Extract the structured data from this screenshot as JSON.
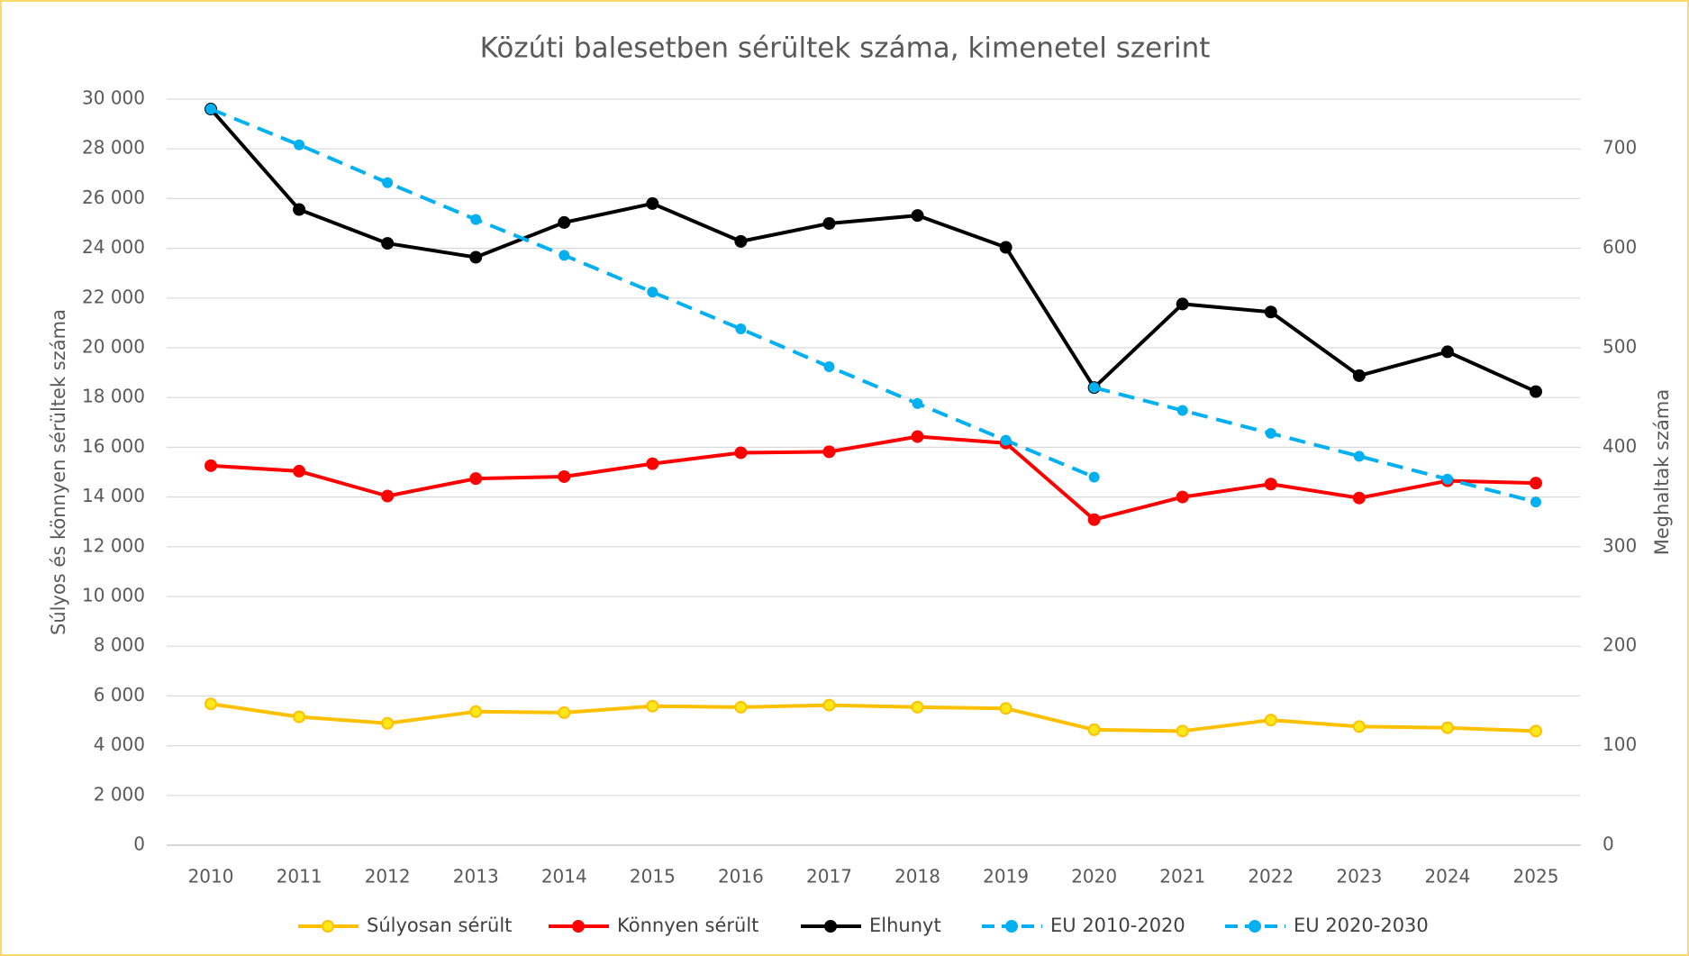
{
  "chart_data": {
    "type": "line",
    "title": "Közúti balesetben sérültek száma, kimenetel szerint",
    "y_label": "Súlyos és könnyen sérültek száma",
    "y2_label": "Meghaltak száma",
    "categories": [
      "2010",
      "2011",
      "2012",
      "2013",
      "2014",
      "2015",
      "2016",
      "2017",
      "2018",
      "2019",
      "2020",
      "2021",
      "2022",
      "2023",
      "2024",
      "2025"
    ],
    "ylim": [
      0,
      30000
    ],
    "yticks": [
      0,
      {
        "value": 2000,
        "label": "2 000"
      },
      {
        "value": 4000,
        "label": "4 000"
      },
      {
        "value": 6000,
        "label": "6 000"
      },
      {
        "value": 8000,
        "label": "8 000"
      },
      {
        "value": 10000,
        "label": "10 000"
      },
      {
        "value": 12000,
        "label": "12 000"
      },
      {
        "value": 14000,
        "label": "14 000"
      },
      {
        "value": 16000,
        "label": "16 000"
      },
      {
        "value": 18000,
        "label": "18 000"
      },
      {
        "value": 20000,
        "label": "20 000"
      },
      {
        "value": 22000,
        "label": "22 000"
      },
      {
        "value": 24000,
        "label": "24 000"
      },
      {
        "value": 26000,
        "label": "26 000"
      },
      {
        "value": 28000,
        "label": "28 000"
      },
      {
        "value": 30000,
        "label": "30 000"
      }
    ],
    "y2lim": [
      0,
      750
    ],
    "y2ticks": [
      0,
      100,
      200,
      300,
      400,
      500,
      600,
      700
    ],
    "grid": true,
    "legend": "bottom",
    "series": [
      {
        "name": "Súlyosan sérült",
        "color": "#FFC000",
        "marker_fill": "#FFE81A",
        "dashed": false,
        "values": [
          5680,
          5160,
          4900,
          5370,
          5330,
          5590,
          5550,
          5630,
          5550,
          5500,
          4640,
          4590,
          5030,
          4770,
          4720,
          4590
        ]
      },
      {
        "name": "Könnyen sérült",
        "color": "#FF0000",
        "marker_fill": "#FF0000",
        "dashed": false,
        "values": [
          15260,
          15040,
          14040,
          14740,
          14820,
          15340,
          15780,
          15820,
          16430,
          16170,
          13090,
          14000,
          14520,
          13960,
          14650,
          14560
        ]
      },
      {
        "name": "Elhunyt",
        "color": "#000000",
        "marker_fill": "#000000",
        "dashed": false,
        "axis": "y2",
        "values": [
          740,
          639,
          605,
          591,
          626,
          645,
          607,
          625,
          633,
          601,
          460,
          544,
          536,
          472,
          496,
          456
        ]
      },
      {
        "name": "EU 2010-2020",
        "color": "#00B0F0",
        "marker_fill": "#00B0F0",
        "dashed": true,
        "axis": "y2",
        "values": [
          740,
          704,
          666,
          629,
          593,
          556,
          519,
          481,
          444,
          407,
          370,
          null,
          null,
          null,
          null,
          null
        ]
      },
      {
        "name": "EU 2020-2030",
        "color": "#00B0F0",
        "marker_fill": "#00B0F0",
        "dashed": true,
        "axis": "y2",
        "values": [
          null,
          null,
          null,
          null,
          null,
          null,
          null,
          null,
          null,
          null,
          460,
          437,
          414,
          391,
          368,
          345
        ]
      }
    ]
  }
}
